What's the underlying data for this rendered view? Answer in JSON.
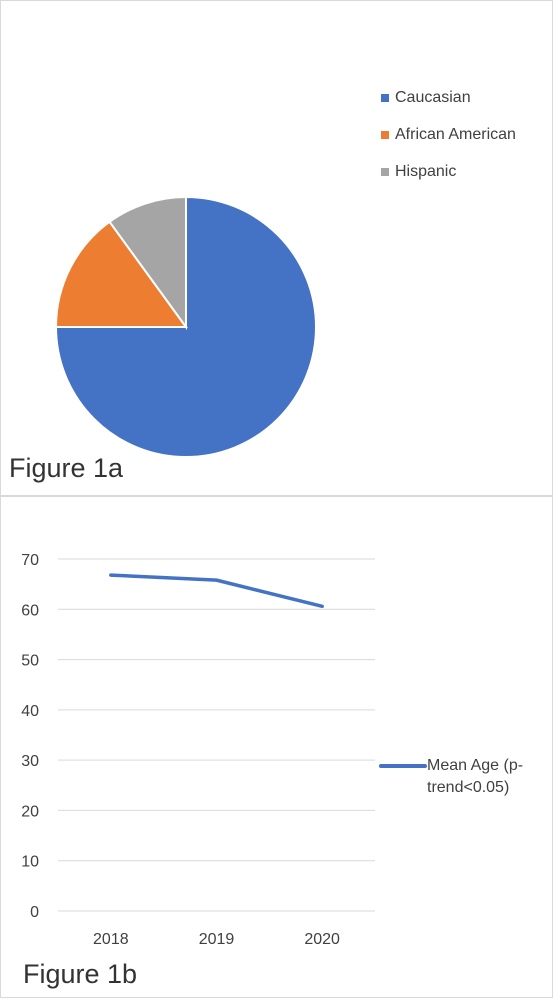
{
  "chart_data": [
    {
      "type": "pie",
      "title": "",
      "categories": [
        "Caucasian",
        "African American",
        "Hispanic"
      ],
      "values": [
        75,
        15,
        10
      ],
      "colors": [
        "#4472c4",
        "#ed7d31",
        "#a5a5a5"
      ],
      "legend_position": "right",
      "caption": "Figure 1a"
    },
    {
      "type": "line",
      "title": "",
      "categories": [
        "2018",
        "2019",
        "2020"
      ],
      "series": [
        {
          "name": "Mean Age (p-trend<0.05)",
          "values": [
            66.8,
            65.8,
            60.6
          ],
          "color": "#4472c4"
        }
      ],
      "yticks": [
        "0",
        "10",
        "20",
        "30",
        "40",
        "50",
        "60",
        "70"
      ],
      "ylim": [
        0,
        70
      ],
      "grid": true,
      "legend_position": "right",
      "caption": "Figure 1b"
    }
  ]
}
